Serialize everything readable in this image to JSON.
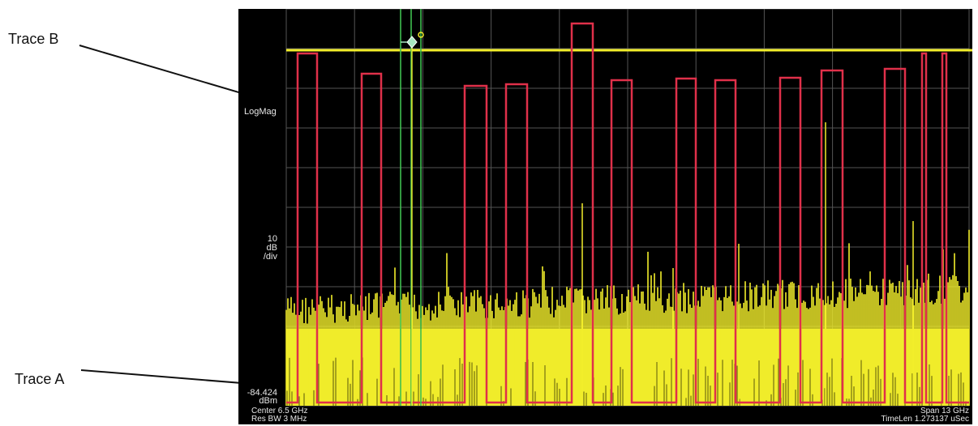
{
  "callouts": {
    "trace_b": "Trace B",
    "trace_a": "Trace A"
  },
  "analyzer": {
    "scale_mode": "LogMag",
    "scale_value": "10",
    "scale_unit_1": "dB",
    "scale_unit_2": "/div",
    "reference_value": "-84.424",
    "reference_unit": "dBm",
    "center": "Center 6.5 GHz",
    "res_bw": "Res BW 3 MHz",
    "span": "Span 13 GHz",
    "time_len": "TimeLen 1.273137 uSec"
  },
  "colors": {
    "background": "#000000",
    "grid": "#555555",
    "trace_a": "#f2ee2a",
    "trace_b": "#e0304a",
    "marker_lines": "#3fbf4f",
    "marker_glyph": "#a8e8c0",
    "threshold_line": "#f2ee2a"
  },
  "icons": {
    "marker": "diamond-marker-icon"
  }
}
